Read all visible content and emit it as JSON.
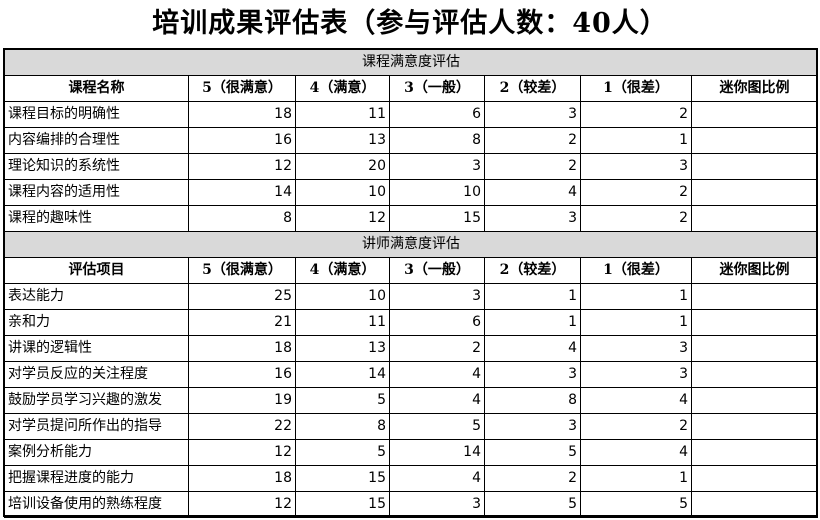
{
  "title": "培训成果评估表（参与评估人数：40人）",
  "headers": [
    "5（很满意）",
    "4（满意）",
    "3（一般）",
    "2（较差）",
    "1（很差）",
    "迷你图比例"
  ],
  "sections": [
    {
      "title": "课程满意度评估",
      "first_header": "课程名称",
      "rows": [
        {
          "name": "课程目标的明确性",
          "values": [
            18,
            11,
            6,
            3,
            2
          ]
        },
        {
          "name": "内容编排的合理性",
          "values": [
            16,
            13,
            8,
            2,
            1
          ]
        },
        {
          "name": "理论知识的系统性",
          "values": [
            12,
            20,
            3,
            2,
            3
          ]
        },
        {
          "name": "课程内容的适用性",
          "values": [
            14,
            10,
            10,
            4,
            2
          ]
        },
        {
          "name": "课程的趣味性",
          "values": [
            8,
            12,
            15,
            3,
            2
          ]
        }
      ]
    },
    {
      "title": "讲师满意度评估",
      "first_header": "评估项目",
      "rows": [
        {
          "name": "表达能力",
          "values": [
            25,
            10,
            3,
            1,
            1
          ]
        },
        {
          "name": "亲和力",
          "values": [
            21,
            11,
            6,
            1,
            1
          ]
        },
        {
          "name": "讲课的逻辑性",
          "values": [
            18,
            13,
            2,
            4,
            3
          ]
        },
        {
          "name": "对学员反应的关注程度",
          "values": [
            16,
            14,
            4,
            3,
            3
          ]
        },
        {
          "name": "鼓励学员学习兴趣的激发",
          "values": [
            19,
            5,
            4,
            8,
            4
          ]
        },
        {
          "name": "对学员提问所作出的指导",
          "values": [
            22,
            8,
            5,
            3,
            2
          ]
        },
        {
          "name": "案例分析能力",
          "values": [
            12,
            5,
            14,
            5,
            4
          ]
        },
        {
          "name": "把握课程进度的能力",
          "values": [
            18,
            15,
            4,
            2,
            1
          ]
        },
        {
          "name": "培训设备使用的熟练程度",
          "values": [
            12,
            15,
            3,
            5,
            5
          ]
        }
      ]
    }
  ]
}
